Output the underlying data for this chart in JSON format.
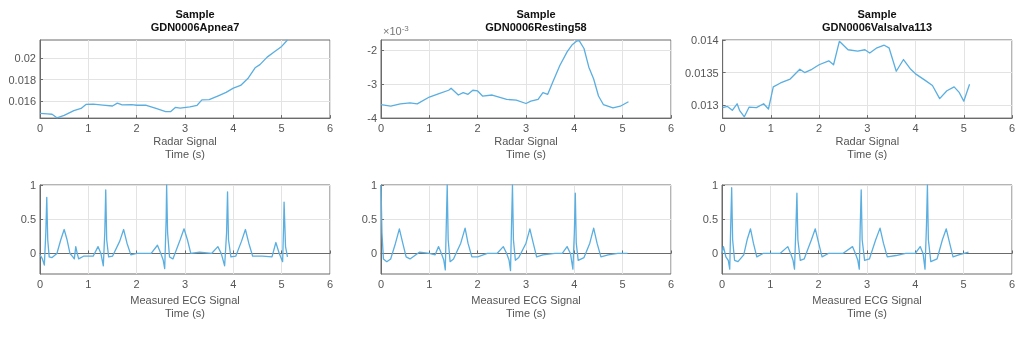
{
  "chart_data": [
    {
      "type": "line",
      "title": "Sample\nGDN0006Apnea7",
      "xlabel": "Radar Signal\nTime (s)",
      "color": "#5aaee0",
      "grid": true,
      "xlim": [
        0,
        6
      ],
      "xticks": [
        0,
        1,
        2,
        3,
        4,
        5,
        6
      ],
      "ylim": [
        0.0144,
        0.0217
      ],
      "yticks": [
        0.016,
        0.018,
        0.02
      ],
      "x": [
        0,
        0.15,
        0.25,
        0.35,
        0.5,
        0.7,
        0.85,
        0.95,
        1.1,
        1.3,
        1.5,
        1.6,
        1.7,
        1.9,
        2.0,
        2.2,
        2.4,
        2.6,
        2.7,
        2.8,
        2.9,
        3.1,
        3.25,
        3.35,
        3.5,
        3.7,
        3.85,
        4.0,
        4.15,
        4.3,
        4.45,
        4.55,
        4.7,
        4.85,
        5.0,
        5.12
      ],
      "values": [
        0.01484,
        0.0148,
        0.01476,
        0.01443,
        0.01466,
        0.0151,
        0.0153,
        0.01568,
        0.0157,
        0.01562,
        0.01553,
        0.0158,
        0.01563,
        0.01565,
        0.0156,
        0.0156,
        0.0153,
        0.015,
        0.015,
        0.0154,
        0.01533,
        0.01545,
        0.0156,
        0.0161,
        0.01612,
        0.0165,
        0.0168,
        0.0172,
        0.01745,
        0.0181,
        0.0191,
        0.0194,
        0.0201,
        0.0206,
        0.0211,
        0.0217
      ]
    },
    {
      "type": "line",
      "title": "Sample\nGDN0006Resting58",
      "xlabel": "Radar Signal\nTime (s)",
      "color": "#5aaee0",
      "grid": true,
      "xlim": [
        0,
        6
      ],
      "xticks": [
        0,
        1,
        2,
        3,
        4,
        5,
        6
      ],
      "ylim": [
        -4,
        -1.7
      ],
      "yticks": [
        -4,
        -3,
        -2
      ],
      "annotations": [
        "×10$^{-3}$"
      ],
      "x": [
        0,
        0.2,
        0.4,
        0.6,
        0.75,
        1.0,
        1.2,
        1.4,
        1.45,
        1.6,
        1.7,
        1.8,
        1.9,
        2.0,
        2.1,
        2.3,
        2.6,
        2.8,
        3.0,
        3.1,
        3.25,
        3.35,
        3.45,
        3.55,
        3.7,
        3.85,
        3.95,
        4.05,
        4.1,
        4.2,
        4.3,
        4.4,
        4.5,
        4.6,
        4.8,
        4.95,
        5.12
      ],
      "values": [
        -3.6,
        -3.65,
        -3.58,
        -3.55,
        -3.58,
        -3.38,
        -3.28,
        -3.18,
        -3.12,
        -3.32,
        -3.25,
        -3.3,
        -3.18,
        -3.2,
        -3.35,
        -3.32,
        -3.45,
        -3.47,
        -3.57,
        -3.5,
        -3.45,
        -3.25,
        -3.3,
        -2.95,
        -2.45,
        -2.05,
        -1.85,
        -1.73,
        -1.72,
        -1.95,
        -2.5,
        -2.85,
        -3.35,
        -3.6,
        -3.7,
        -3.65,
        -3.52
      ]
    },
    {
      "type": "line",
      "title": "Sample\nGDN0006Valsalva113",
      "xlabel": "Radar Signal\nTime (s)",
      "color": "#5aaee0",
      "grid": true,
      "xlim": [
        0,
        6
      ],
      "xticks": [
        0,
        1,
        2,
        3,
        4,
        5,
        6
      ],
      "ylim": [
        0.0128,
        0.014
      ],
      "yticks": [
        0.013,
        0.0135,
        0.014
      ],
      "x": [
        0,
        0.1,
        0.2,
        0.3,
        0.35,
        0.45,
        0.55,
        0.7,
        0.85,
        0.95,
        1.05,
        1.2,
        1.4,
        1.6,
        1.7,
        1.85,
        2.0,
        2.2,
        2.3,
        2.42,
        2.6,
        2.8,
        2.95,
        3.05,
        3.2,
        3.35,
        3.45,
        3.6,
        3.75,
        3.9,
        4.0,
        4.2,
        4.35,
        4.5,
        4.65,
        4.8,
        4.9,
        5.0,
        5.12
      ],
      "values": [
        0.01296,
        0.01298,
        0.01292,
        0.01302,
        0.01292,
        0.01282,
        0.01297,
        0.01296,
        0.01302,
        0.01294,
        0.01328,
        0.01334,
        0.0134,
        0.01355,
        0.0135,
        0.01355,
        0.01362,
        0.01368,
        0.01362,
        0.01398,
        0.01385,
        0.01383,
        0.01385,
        0.0138,
        0.01388,
        0.01392,
        0.01388,
        0.01352,
        0.0137,
        0.01355,
        0.01348,
        0.01338,
        0.0133,
        0.0131,
        0.01322,
        0.01328,
        0.0132,
        0.01306,
        0.01332
      ]
    },
    {
      "type": "line",
      "xlabel": "Measured ECG Signal\nTime (s)",
      "color": "#5aaee0",
      "grid": true,
      "xlim": [
        0,
        6
      ],
      "xticks": [
        0,
        1,
        2,
        3,
        4,
        5,
        6
      ],
      "ylim": [
        -0.3,
        1
      ],
      "yticks": [
        0,
        0.5,
        1
      ],
      "x": [
        0,
        0.05,
        0.09,
        0.12,
        0.14,
        0.16,
        0.19,
        0.25,
        0.35,
        0.43,
        0.5,
        0.56,
        0.62,
        0.68,
        0.71,
        0.74,
        0.77,
        0.8,
        0.9,
        1.1,
        1.2,
        1.26,
        1.31,
        1.34,
        1.36,
        1.38,
        1.42,
        1.5,
        1.65,
        1.73,
        1.8,
        1.88,
        2.0,
        2.3,
        2.43,
        2.5,
        2.55,
        2.58,
        2.61,
        2.62,
        2.64,
        2.68,
        2.75,
        2.9,
        2.98,
        3.05,
        3.12,
        3.3,
        3.55,
        3.68,
        3.75,
        3.82,
        3.86,
        3.88,
        3.9,
        3.95,
        4.05,
        4.17,
        4.25,
        4.32,
        4.4,
        4.6,
        4.8,
        4.88,
        4.95,
        5.02,
        5.04,
        5.05,
        5.08,
        5.12
      ],
      "values": [
        -0.02,
        -0.08,
        -0.17,
        0.3,
        0.82,
        0.2,
        -0.05,
        -0.06,
        0,
        0.2,
        0.35,
        0.2,
        0,
        -0.05,
        -0.08,
        0.1,
        0,
        -0.08,
        -0.04,
        -0.04,
        0.1,
        0,
        -0.18,
        0.3,
        0.93,
        0.2,
        -0.05,
        -0.04,
        0.18,
        0.35,
        0.15,
        -0.02,
        0,
        0,
        0.12,
        0,
        -0.1,
        -0.22,
        0.5,
        1,
        0.3,
        -0.05,
        -0.08,
        0.2,
        0.36,
        0.2,
        0,
        0.02,
        0,
        0.1,
        0,
        -0.18,
        0.3,
        0.9,
        0.2,
        -0.05,
        -0.04,
        0.18,
        0.35,
        0.15,
        -0.04,
        -0.04,
        -0.05,
        0.16,
        0,
        -0.12,
        0.4,
        0.75,
        0.1,
        -0.05
      ]
    },
    {
      "type": "line",
      "xlabel": "Measured ECG Signal\nTime (s)",
      "color": "#5aaee0",
      "grid": true,
      "xlim": [
        0,
        6
      ],
      "xticks": [
        0,
        1,
        2,
        3,
        4,
        5,
        6
      ],
      "ylim": [
        -0.3,
        1
      ],
      "yticks": [
        0,
        0.5,
        1
      ],
      "x": [
        0,
        0.02,
        0.05,
        0.12,
        0.2,
        0.3,
        0.38,
        0.45,
        0.52,
        0.6,
        0.8,
        1.0,
        1.12,
        1.19,
        1.25,
        1.3,
        1.33,
        1.35,
        1.37,
        1.39,
        1.43,
        1.5,
        1.65,
        1.74,
        1.8,
        1.88,
        2.0,
        2.2,
        2.4,
        2.53,
        2.6,
        2.65,
        2.68,
        2.7,
        2.72,
        2.74,
        2.78,
        2.85,
        3.0,
        3.08,
        3.15,
        3.22,
        3.35,
        3.6,
        3.75,
        3.85,
        3.92,
        3.97,
        4.0,
        4.02,
        4.04,
        4.08,
        4.2,
        4.32,
        4.4,
        4.47,
        4.55,
        4.7,
        4.9,
        5.1
      ],
      "values": [
        1,
        0.3,
        -0.08,
        -0.12,
        -0.08,
        0.15,
        0.36,
        0.15,
        -0.05,
        -0.08,
        0.02,
        0,
        -0.02,
        0.1,
        0,
        -0.1,
        -0.24,
        0.4,
        1,
        0.2,
        -0.12,
        -0.08,
        0.15,
        0.37,
        0.15,
        -0.05,
        -0.05,
        0,
        0,
        0.1,
        0,
        -0.1,
        -0.25,
        0.4,
        1,
        0.2,
        -0.1,
        -0.06,
        0.15,
        0.36,
        0.15,
        -0.05,
        -0.02,
        0,
        0,
        0.1,
        0,
        -0.23,
        0.3,
        0.88,
        0.15,
        -0.1,
        -0.06,
        0.15,
        0.37,
        0.15,
        -0.05,
        -0.02,
        0,
        0
      ]
    },
    {
      "type": "line",
      "xlabel": "Measured ECG Signal\nTime (s)",
      "color": "#5aaee0",
      "grid": true,
      "xlim": [
        0,
        6
      ],
      "xticks": [
        0,
        1,
        2,
        3,
        4,
        5,
        6
      ],
      "ylim": [
        -0.3,
        1
      ],
      "yticks": [
        0,
        0.5,
        1
      ],
      "x": [
        0,
        0.03,
        0.08,
        0.13,
        0.16,
        0.18,
        0.2,
        0.22,
        0.26,
        0.33,
        0.45,
        0.52,
        0.59,
        0.65,
        0.72,
        0.85,
        1.0,
        1.2,
        1.36,
        1.42,
        1.47,
        1.5,
        1.53,
        1.55,
        1.57,
        1.62,
        1.7,
        1.85,
        1.93,
        2.0,
        2.07,
        2.2,
        2.5,
        2.7,
        2.76,
        2.81,
        2.84,
        2.86,
        2.88,
        2.9,
        2.95,
        3.05,
        3.18,
        3.27,
        3.34,
        3.42,
        3.6,
        3.8,
        4.0,
        4.1,
        4.16,
        4.2,
        4.23,
        4.25,
        4.27,
        4.32,
        4.45,
        4.56,
        4.64,
        4.71,
        4.78,
        4.9,
        5.1
      ],
      "values": [
        0,
        0.1,
        -0.05,
        -0.1,
        -0.23,
        0.4,
        0.96,
        0.2,
        -0.1,
        -0.12,
        -0.02,
        0.2,
        0.36,
        0.15,
        -0.05,
        0,
        0,
        0,
        0.1,
        0,
        -0.1,
        -0.23,
        0.4,
        0.88,
        0.2,
        -0.1,
        -0.08,
        0.2,
        0.36,
        0.15,
        -0.05,
        0,
        0,
        0.1,
        0,
        -0.1,
        -0.23,
        0.4,
        0.93,
        0.2,
        -0.1,
        -0.08,
        0.2,
        0.37,
        0.15,
        -0.05,
        -0.03,
        0,
        0,
        0.1,
        0,
        -0.23,
        0.4,
        1,
        0.2,
        -0.12,
        -0.08,
        0.2,
        0.36,
        0.15,
        -0.05,
        -0.02,
        0.02
      ]
    }
  ]
}
